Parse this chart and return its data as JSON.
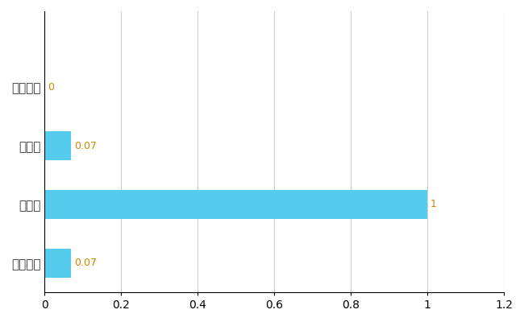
{
  "categories": [
    "全国平均",
    "県最大",
    "県平均",
    "瑞戸内市"
  ],
  "values": [
    0.07,
    1.0,
    0.07,
    0.0
  ],
  "bar_color": "#55CCEE",
  "label_color": "#CC8800",
  "xlim": [
    0,
    1.2
  ],
  "xticks": [
    0,
    0.2,
    0.4,
    0.6,
    0.8,
    1.0,
    1.2
  ],
  "xtick_labels": [
    "0",
    "0.2",
    "0.4",
    "0.6",
    "0.8",
    "1",
    "1.2"
  ],
  "bar_labels": [
    "0.07",
    "1",
    "0.07",
    "0"
  ],
  "grid_color": "#cccccc",
  "bg_color": "#ffffff",
  "figsize": [
    6.5,
    4.0
  ],
  "dpi": 100
}
